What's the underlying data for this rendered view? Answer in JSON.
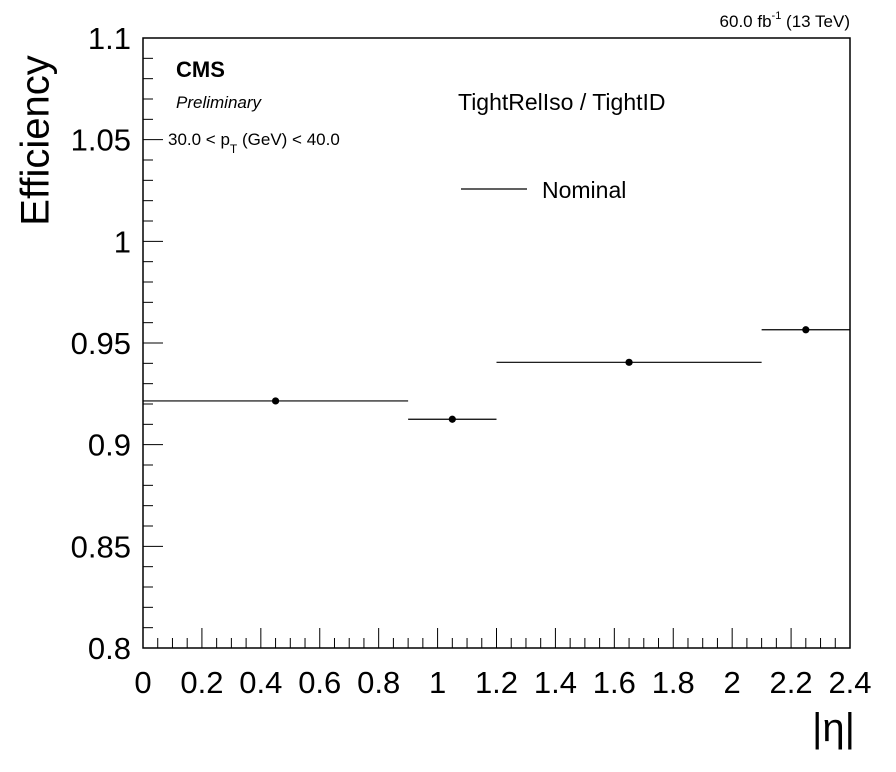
{
  "header": {
    "lumi_value": "60.0 fb",
    "lumi_exp": "-1",
    "lumi_energy": "(13 TeV)",
    "experiment": "CMS",
    "status": "Preliminary",
    "pt_lo": "30.0 < p",
    "pt_sub": "T",
    "pt_hi": "(GeV) < 40.0",
    "selection": "TightRelIso / TightID"
  },
  "chart_data": {
    "type": "scatter",
    "xlabel": "|η|",
    "ylabel": "Efficiency",
    "xlim": [
      0,
      2.4
    ],
    "ylim": [
      0.8,
      1.1
    ],
    "x_ticks": [
      "0",
      "0.2",
      "0.4",
      "0.6",
      "0.8",
      "1",
      "1.2",
      "1.4",
      "1.6",
      "1.8",
      "2",
      "2.2",
      "2.4"
    ],
    "y_ticks": [
      "0.8",
      "0.85",
      "0.9",
      "0.95",
      "1",
      "1.05",
      "1.1"
    ],
    "grid": false,
    "legend": {
      "position": "top-center"
    },
    "series": [
      {
        "name": "Nominal",
        "color": "#000000",
        "points": [
          {
            "x_lo": 0.0,
            "x_hi": 0.9,
            "x": 0.45,
            "y": 0.9215
          },
          {
            "x_lo": 0.9,
            "x_hi": 1.2,
            "x": 1.05,
            "y": 0.9125
          },
          {
            "x_lo": 1.2,
            "x_hi": 2.1,
            "x": 1.65,
            "y": 0.9405
          },
          {
            "x_lo": 2.1,
            "x_hi": 2.4,
            "x": 2.25,
            "y": 0.9565
          }
        ]
      }
    ]
  }
}
